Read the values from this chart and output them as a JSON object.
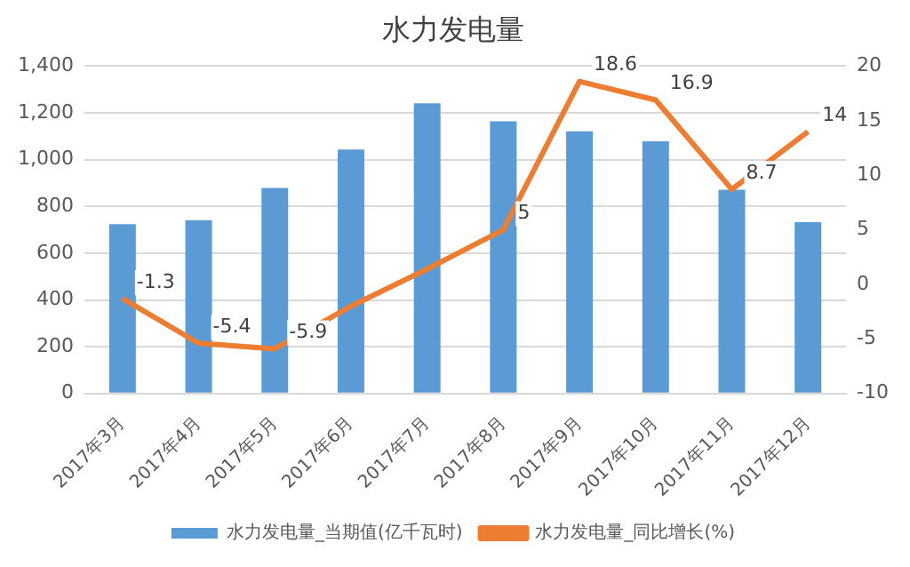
{
  "chart_data": {
    "type": "bar",
    "title": "水力发电量",
    "categories": [
      "2017年3月",
      "2017年4月",
      "2017年5月",
      "2017年6月",
      "2017年7月",
      "2017年8月",
      "2017年9月",
      "2017年10月",
      "2017年11月",
      "2017年12月"
    ],
    "series": [
      {
        "name": "水力发电量_当期值(亿千瓦时)",
        "color": "#5b9bd5",
        "values": [
          724,
          741,
          879,
          1043,
          1241,
          1164,
          1121,
          1078,
          871,
          733
        ]
      },
      {
        "name": "水力发电量_同比增长(%)",
        "type": "line",
        "axis": "y2",
        "color": "#ed7d31",
        "values": [
          -1.3,
          -5.4,
          -5.9,
          -2.0,
          1.4,
          5,
          18.6,
          16.9,
          8.7,
          14
        ],
        "value_labels": [
          "-1.3",
          "-5.4",
          "-5.9",
          null,
          null,
          "5",
          "18.6",
          "16.9",
          "8.7",
          "14"
        ]
      }
    ],
    "ylim": [
      0,
      1400
    ],
    "yticks": [
      0,
      200,
      400,
      600,
      800,
      {
        "value": 1000,
        "label": "1,000"
      },
      {
        "value": 1200,
        "label": "1,200"
      },
      {
        "value": 1400,
        "label": "1,400"
      }
    ],
    "y2lim": [
      -10,
      20
    ],
    "y2ticks": [
      -10,
      -5,
      0,
      5,
      10,
      15,
      20
    ],
    "grid": "y",
    "legend": "bottom",
    "marker": "none"
  }
}
